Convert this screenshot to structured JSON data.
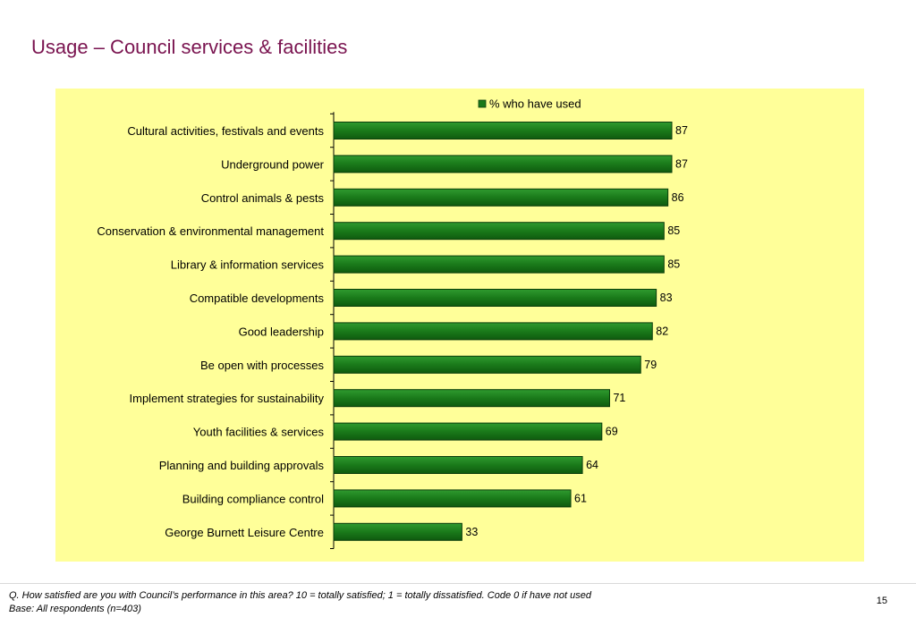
{
  "page": {
    "title": "Usage – Council services & facilities",
    "footnote_question": "Q. How satisfied are you with Council’s performance in this area?  10 = totally satisfied; 1 = totally dissatisfied.   Code 0  if have not used",
    "footnote_base": "Base: All respondents (n=403)",
    "page_number": "15"
  },
  "chart_data": {
    "type": "bar",
    "orientation": "horizontal",
    "categories": [
      "Cultural activities, festivals and events",
      "Underground power",
      "Control animals & pests",
      "Conservation & environmental management",
      "Library & information services",
      "Compatible developments",
      "Good leadership",
      "Be open with processes",
      "Implement strategies for sustainability",
      "Youth facilities & services",
      "Planning and building approvals",
      "Building compliance control",
      "George Burnett Leisure Centre"
    ],
    "series": [
      {
        "name": "% who have used",
        "values": [
          87,
          87,
          86,
          85,
          85,
          83,
          82,
          79,
          71,
          69,
          64,
          61,
          33
        ]
      }
    ],
    "xlim": [
      0,
      100
    ],
    "grid": false,
    "legend_position": "top",
    "data_labels": true,
    "colors": {
      "bar": "#1a7a1a",
      "bar_edge": "#0b3d0b",
      "background": "#ffff99",
      "title": "#7a1450"
    }
  }
}
